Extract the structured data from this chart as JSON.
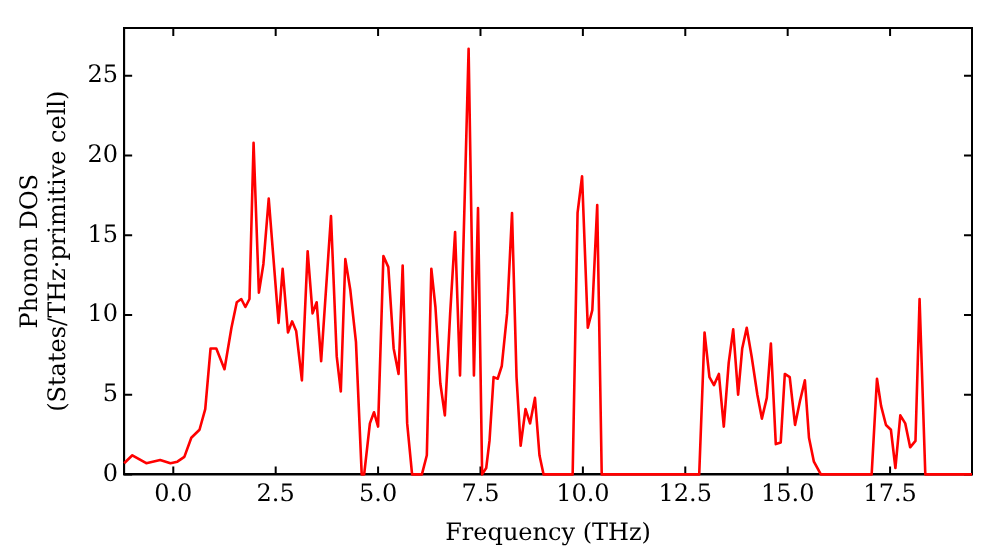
{
  "chart_data": {
    "type": "line",
    "xlabel": "Frequency (THz)",
    "ylabel": "Phonon DOS\n(States/THz·primitive cell)",
    "xlim": [
      -1.2,
      19.5
    ],
    "ylim": [
      0,
      28
    ],
    "xticks": [
      {
        "value": 0,
        "label": "0.0"
      },
      {
        "value": 2.5,
        "label": "2.5"
      },
      {
        "value": 5,
        "label": "5.0"
      },
      {
        "value": 7.5,
        "label": "7.5"
      },
      {
        "value": 10,
        "label": "10.0"
      },
      {
        "value": 12.5,
        "label": "12.5"
      },
      {
        "value": 15,
        "label": "15.0"
      },
      {
        "value": 17.5,
        "label": "17.5"
      }
    ],
    "yticks": [
      0,
      5,
      10,
      15,
      20,
      25
    ],
    "grid": false,
    "legend": false,
    "marker": "none",
    "line_style": "solid",
    "series": [
      {
        "color": "#ff0000",
        "x": [
          -1.2,
          -1.0,
          -0.66,
          -0.32,
          -0.07,
          0.1,
          0.27,
          0.44,
          0.64,
          0.78,
          0.91,
          1.05,
          1.25,
          1.42,
          1.55,
          1.66,
          1.76,
          1.86,
          1.96,
          2.09,
          2.2,
          2.33,
          2.57,
          2.67,
          2.8,
          2.9,
          3.0,
          3.14,
          3.28,
          3.4,
          3.5,
          3.61,
          3.85,
          3.99,
          4.09,
          4.2,
          4.32,
          4.46,
          4.6,
          4.66,
          4.8,
          4.9,
          5.0,
          5.13,
          5.25,
          5.38,
          5.5,
          5.6,
          5.71,
          5.83,
          6.07,
          6.19,
          6.3,
          6.4,
          6.52,
          6.63,
          6.76,
          6.88,
          7.0,
          7.21,
          7.34,
          7.44,
          7.54,
          7.64,
          7.72,
          7.82,
          7.92,
          8.02,
          8.15,
          8.27,
          8.38,
          8.48,
          8.6,
          8.71,
          8.83,
          8.94,
          9.04,
          9.75,
          9.87,
          9.98,
          10.12,
          10.23,
          10.35,
          10.46,
          12.84,
          12.97,
          13.09,
          13.2,
          13.32,
          13.44,
          13.56,
          13.67,
          13.79,
          13.89,
          14.0,
          14.12,
          14.26,
          14.37,
          14.49,
          14.59,
          14.71,
          14.83,
          14.93,
          15.05,
          15.18,
          15.3,
          15.42,
          15.52,
          15.64,
          15.81,
          17.05,
          17.18,
          17.28,
          17.4,
          17.52,
          17.63,
          17.75,
          17.87,
          17.99,
          18.12,
          18.22,
          18.36,
          19.5
        ],
        "values": [
          0.7,
          1.2,
          0.7,
          0.9,
          0.7,
          0.8,
          1.1,
          2.3,
          2.8,
          4.1,
          7.9,
          7.9,
          6.6,
          9.2,
          10.8,
          11.0,
          10.5,
          11.0,
          20.8,
          11.4,
          13.2,
          17.3,
          9.5,
          12.9,
          8.9,
          9.6,
          9.0,
          5.9,
          14.0,
          10.1,
          10.8,
          7.1,
          16.2,
          7.4,
          5.2,
          13.5,
          11.6,
          8.3,
          0,
          0,
          3.2,
          3.9,
          3.0,
          13.7,
          13.0,
          7.9,
          6.3,
          13.1,
          3.2,
          0,
          0,
          1.2,
          12.9,
          10.5,
          5.7,
          3.7,
          10.1,
          15.2,
          6.2,
          26.7,
          6.2,
          16.7,
          0,
          0.4,
          2.1,
          6.1,
          6.0,
          6.8,
          10.1,
          16.4,
          6.1,
          1.8,
          4.1,
          3.2,
          4.8,
          1.2,
          0,
          0,
          16.4,
          18.7,
          9.2,
          10.3,
          16.9,
          0,
          0,
          8.9,
          6.1,
          5.6,
          6.3,
          3.0,
          7.0,
          9.1,
          5.0,
          7.9,
          9.2,
          7.4,
          5.0,
          3.5,
          4.8,
          8.2,
          1.9,
          2.0,
          6.3,
          6.1,
          3.1,
          4.6,
          5.9,
          2.3,
          0.8,
          0,
          0,
          6.0,
          4.3,
          3.1,
          2.8,
          0.4,
          3.7,
          3.2,
          1.7,
          2.1,
          11.0,
          0,
          0
        ]
      }
    ]
  }
}
